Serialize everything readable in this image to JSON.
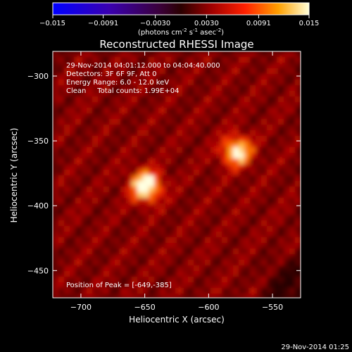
{
  "colorbar": {
    "ticks": [
      "-0.015",
      "-0.0091",
      "-0.0030",
      "0.0030",
      "0.0091",
      "0.015"
    ],
    "tick_values": [
      -0.015,
      -0.0091,
      -0.003,
      0.003,
      0.0091,
      0.015
    ],
    "range": [
      -0.015,
      0.015
    ],
    "units_main": "(photons cm",
    "units_sup1": "-2",
    "units_mid": " s",
    "units_sup2": "-1",
    "units_end": " asec",
    "units_sup3": "-2",
    "units_close": ")"
  },
  "chart_data": {
    "type": "heatmap",
    "title": "Reconstructed RHESSI Image",
    "xlabel": "Heliocentric X (arcsec)",
    "ylabel": "Heliocentric Y (arcsec)",
    "xlim": [
      -722,
      -528
    ],
    "ylim": [
      -471,
      -281
    ],
    "xticks": [
      -700,
      -650,
      -600,
      -550
    ],
    "yticks": [
      -300,
      -350,
      -400,
      -450
    ],
    "xtick_labels": [
      "−700",
      "−650",
      "−600",
      "−550"
    ],
    "ytick_labels": [
      "−300",
      "−350",
      "−400",
      "−450"
    ],
    "sources": [
      {
        "x": -649,
        "y": -385,
        "peak": 0.015
      },
      {
        "x": -578,
        "y": -358,
        "peak": 0.0125
      }
    ],
    "info": [
      "29-Nov-2014 04:01:12.000 to 04:04:40.000",
      "Detectors: 3F 6F 9F, Att 0",
      "Energy Range: 6.0 - 12.0 keV",
      "Clean     Total counts: 1.99E+04"
    ],
    "peak_label": "Position of Peak = [-649,-385]",
    "colormap": "red-temperature (blue negative)"
  },
  "footer": {
    "timestamp": "29-Nov-2014 01:25"
  },
  "colors": {
    "background": "#000000",
    "text": "#ffffff"
  }
}
